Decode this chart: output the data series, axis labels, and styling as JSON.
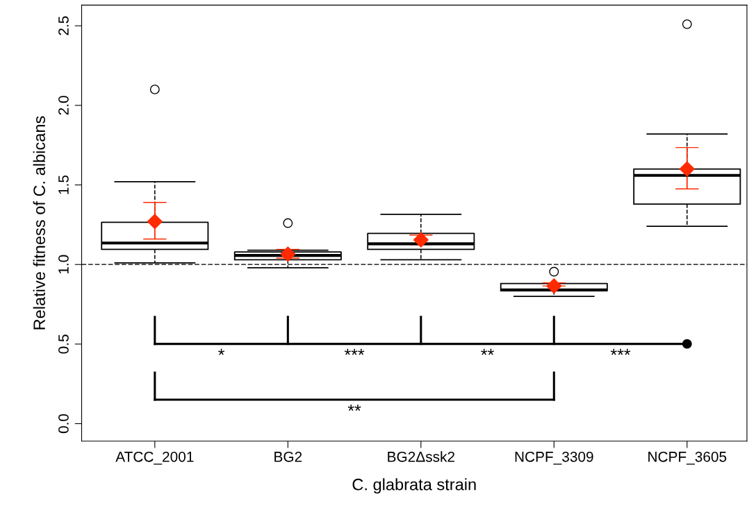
{
  "chart_data": {
    "type": "box",
    "xlabel": "C. glabrata strain",
    "ylabel": "Relative fitness of C. albicans",
    "categories": [
      "ATCC_2001",
      "BG2",
      "BG2Δssk2",
      "NCPF_3309",
      "NCPF_3605"
    ],
    "boxes": [
      {
        "low": 1.01,
        "q1": 1.095,
        "median": 1.135,
        "q3": 1.265,
        "high": 1.52,
        "outliers": [
          2.1
        ]
      },
      {
        "low": 0.98,
        "q1": 1.03,
        "median": 1.057,
        "q3": 1.079,
        "high": 1.09,
        "outliers": [
          1.26
        ]
      },
      {
        "low": 1.03,
        "q1": 1.095,
        "median": 1.13,
        "q3": 1.195,
        "high": 1.315
      },
      {
        "low": 0.8,
        "q1": 0.835,
        "median": 0.84,
        "q3": 0.88,
        "high": 0.88,
        "outliers": [
          0.955
        ]
      },
      {
        "low": 1.24,
        "q1": 1.38,
        "median": 1.56,
        "q3": 1.6,
        "high": 1.82,
        "outliers": [
          2.51
        ]
      }
    ],
    "series": [
      {
        "type": "scatter",
        "color": "#ff2a00",
        "marker": "diamond",
        "x": [
          "ATCC_2001",
          "BG2",
          "BG2Δssk2",
          "NCPF_3309",
          "NCPF_3605"
        ],
        "values": [
          1.27,
          1.065,
          1.155,
          0.865,
          1.6
        ],
        "errors": [
          [
            1.16,
            1.39
          ],
          [
            1.04,
            1.095
          ],
          [
            1.125,
            1.185
          ],
          [
            0.865,
            0.885
          ],
          [
            1.475,
            1.735
          ]
        ]
      }
    ],
    "ylim": [
      -0.11,
      2.63
    ],
    "yticks": [
      {
        "value": 0,
        "label": "0.0"
      },
      0.5,
      {
        "value": 1,
        "label": "1.0"
      },
      1.5,
      {
        "value": 2,
        "label": "2.0"
      },
      2.5
    ],
    "ref_lines": [
      {
        "axis": "y",
        "value": 1,
        "color": "#404040",
        "line_style": "dashed"
      }
    ],
    "annotations": [
      "*",
      "***",
      "**",
      "***",
      "**"
    ],
    "grid": false
  }
}
